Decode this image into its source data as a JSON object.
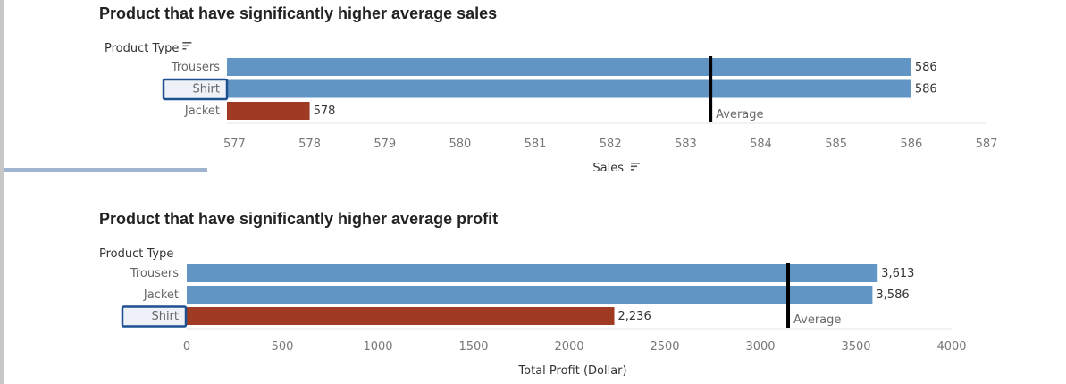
{
  "colors": {
    "highlight": "#9e3b22",
    "bar": "#6196c4",
    "axis_text": "#666666",
    "label_text": "#333333",
    "reference": "#000000",
    "selection": "#1d4f91"
  },
  "icons": {
    "sort": "sort-icon"
  },
  "chart_data": [
    {
      "type": "bar",
      "orientation": "horizontal",
      "title": "Product that have significantly higher average sales",
      "ylabel": "Product Type",
      "xlabel": "Sales",
      "categories": [
        "Trousers",
        "Shirt",
        "Jacket"
      ],
      "values": [
        586,
        586,
        578
      ],
      "value_labels": [
        "586",
        "586",
        "578"
      ],
      "highlighted": [
        "Jacket"
      ],
      "selected": "Shirt",
      "xlim": [
        576.9,
        587
      ],
      "xticks": [
        577,
        578,
        579,
        580,
        581,
        582,
        583,
        584,
        585,
        586,
        587
      ],
      "reference_line": {
        "label": "Average",
        "value": 583.33
      },
      "grid": false
    },
    {
      "type": "bar",
      "orientation": "horizontal",
      "title": "Product that have significantly higher average profit",
      "ylabel": "Product Type",
      "xlabel": "Total Profit (Dollar)",
      "categories": [
        "Trousers",
        "Jacket",
        "Shirt"
      ],
      "values": [
        3613,
        3586,
        2236
      ],
      "value_labels": [
        "3,613",
        "3,586",
        "2,236"
      ],
      "highlighted": [
        "Shirt"
      ],
      "selected": "Shirt",
      "xlim": [
        0,
        4000
      ],
      "xticks": [
        0,
        500,
        1000,
        1500,
        2000,
        2500,
        3000,
        3500,
        4000
      ],
      "reference_line": {
        "label": "Average",
        "value": 3145
      },
      "grid": false
    }
  ]
}
